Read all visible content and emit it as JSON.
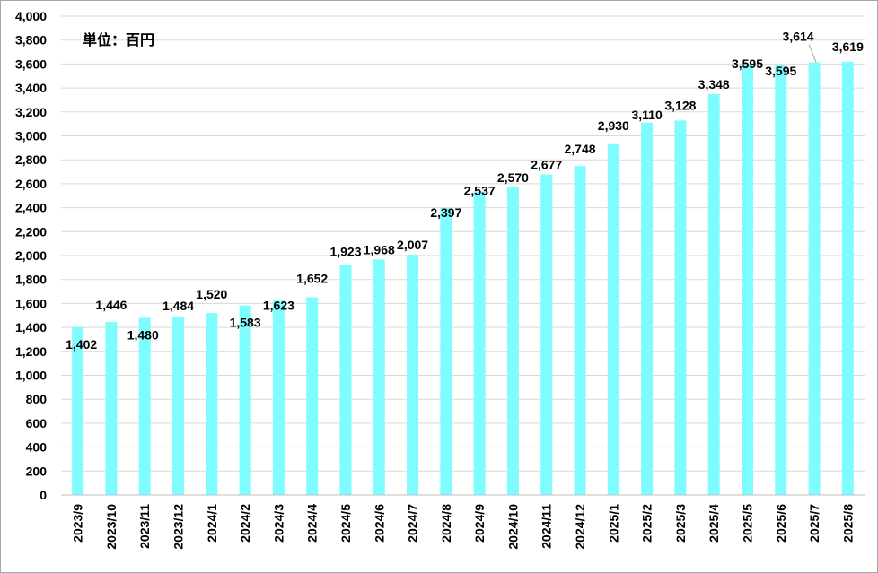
{
  "chart_data": {
    "type": "bar",
    "unit_label": "単位：百円",
    "bar_color": "#7ffcff",
    "grid_color": "#d9d9d9",
    "categories": [
      "2023/9",
      "2023/10",
      "2023/11",
      "2023/12",
      "2024/1",
      "2024/2",
      "2024/3",
      "2024/4",
      "2024/5",
      "2024/6",
      "2024/7",
      "2024/8",
      "2024/9",
      "2024/10",
      "2024/11",
      "2024/12",
      "2025/1",
      "2025/2",
      "2025/3",
      "2025/4",
      "2025/5",
      "2025/6",
      "2025/7",
      "2025/8"
    ],
    "values": [
      1402,
      1446,
      1480,
      1484,
      1520,
      1583,
      1623,
      1652,
      1923,
      1968,
      2007,
      2397,
      2537,
      2570,
      2677,
      2748,
      2930,
      3110,
      3128,
      3348,
      3595,
      3595,
      3614,
      3619
    ],
    "value_labels": [
      "1,402",
      "1,446",
      "1,480",
      "1,484",
      "1,520",
      "1,583",
      "1,623",
      "1,652",
      "1,923",
      "1,968",
      "2,007",
      "2,397",
      "2,537",
      "2,570",
      "2,677",
      "2,748",
      "2,930",
      "3,110",
      "3,128",
      "3,348",
      "3,595",
      "3,595",
      "3,614",
      "3,619"
    ],
    "ylim": [
      0,
      4000
    ],
    "yticks": [
      0,
      200,
      400,
      600,
      800,
      1000,
      1200,
      1400,
      1600,
      1800,
      2000,
      2200,
      2400,
      2600,
      2800,
      3000,
      3200,
      3400,
      3600,
      3800,
      4000
    ],
    "ytick_labels": [
      "0",
      "200",
      "400",
      "600",
      "800",
      "1,000",
      "1,200",
      "1,400",
      "1,600",
      "1,800",
      "2,000",
      "2,200",
      "2,400",
      "2,600",
      "2,800",
      "3,000",
      "3,200",
      "3,400",
      "3,600",
      "3,800",
      "4,000"
    ],
    "grid": true,
    "legend": "none"
  }
}
